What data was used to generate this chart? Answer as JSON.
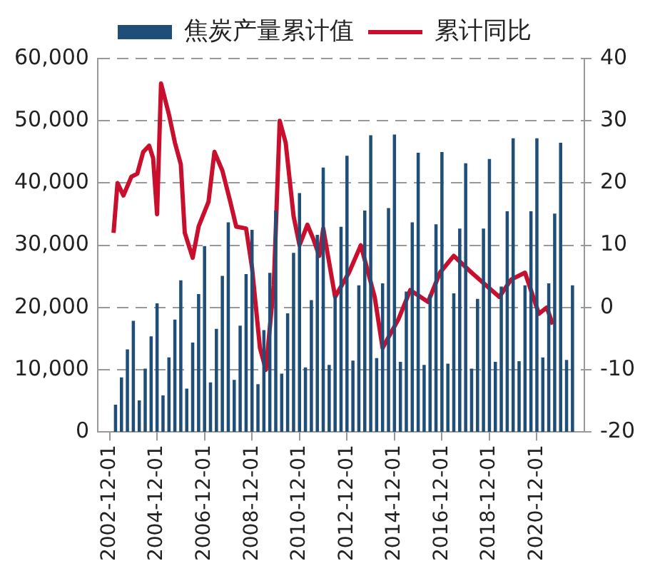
{
  "chart_data": {
    "type": "bar",
    "legend": "top",
    "grid": "y",
    "xlim": [
      "2002-06",
      "2022-12"
    ],
    "xticks": [
      {
        "value": "2002-12-01",
        "label": "2002-12-01"
      },
      {
        "value": "2004-12-01",
        "label": "2004-12-01"
      },
      {
        "value": "2006-12-01",
        "label": "2006-12-01"
      },
      {
        "value": "2008-12-01",
        "label": "2008-12-01"
      },
      {
        "value": "2010-12-01",
        "label": "2010-12-01"
      },
      {
        "value": "2012-12-01",
        "label": "2012-12-01"
      },
      {
        "value": "2014-12-01",
        "label": "2014-12-01"
      },
      {
        "value": "2016-12-01",
        "label": "2016-12-01"
      },
      {
        "value": "2018-12-01",
        "label": "2018-12-01"
      },
      {
        "value": "2020-12-01",
        "label": "2020-12-01"
      }
    ],
    "ylim": [
      0,
      60000
    ],
    "yticks": [
      0,
      {
        "value": 10000,
        "label": "10,000"
      },
      {
        "value": 20000,
        "label": "20,000"
      },
      {
        "value": 30000,
        "label": "30,000"
      },
      {
        "value": 40000,
        "label": "40,000"
      },
      {
        "value": 50000,
        "label": "50,000"
      },
      {
        "value": 60000,
        "label": "60,000"
      }
    ],
    "y2lim": [
      -20,
      40
    ],
    "y2ticks": [
      -20,
      -10,
      0,
      10,
      20,
      30,
      40
    ],
    "x": [
      "2003-03",
      "2003-06",
      "2003-09",
      "2003-12",
      "2004-03",
      "2004-06",
      "2004-09",
      "2004-12",
      "2005-03",
      "2005-06",
      "2005-09",
      "2005-12",
      "2006-03",
      "2006-06",
      "2006-09",
      "2006-12",
      "2007-03",
      "2007-06",
      "2007-09",
      "2007-12",
      "2008-03",
      "2008-06",
      "2008-09",
      "2008-12",
      "2009-03",
      "2009-06",
      "2009-09",
      "2009-12",
      "2010-03",
      "2010-06",
      "2010-09",
      "2010-12",
      "2011-03",
      "2011-06",
      "2011-09",
      "2011-12",
      "2012-03",
      "2012-06",
      "2012-09",
      "2012-12",
      "2013-03",
      "2013-06",
      "2013-09",
      "2013-12",
      "2014-03",
      "2014-06",
      "2014-09",
      "2014-12",
      "2015-03",
      "2015-06",
      "2015-09",
      "2015-12",
      "2016-03",
      "2016-06",
      "2016-09",
      "2016-12",
      "2017-03",
      "2017-06",
      "2017-09",
      "2017-12",
      "2018-03",
      "2018-06",
      "2018-09",
      "2018-12",
      "2019-03",
      "2019-06",
      "2019-09",
      "2019-12",
      "2020-03",
      "2020-06",
      "2020-09",
      "2020-12",
      "2021-03",
      "2021-06",
      "2021-09",
      "2021-12",
      "2022-03",
      "2022-06"
    ],
    "series": [
      {
        "name": "焦炭产量累计值",
        "color": "#1f4e79",
        "values": [
          4300,
          8700,
          13200,
          17800,
          5000,
          10100,
          15300,
          20600,
          5800,
          11900,
          18000,
          24300,
          6900,
          14300,
          22100,
          29800,
          7900,
          16500,
          25000,
          33600,
          8300,
          17000,
          25300,
          32400,
          7600,
          16300,
          25500,
          35500,
          9300,
          19000,
          28700,
          38300,
          10300,
          21100,
          31600,
          42400,
          10700,
          21800,
          32900,
          44300,
          11400,
          23500,
          35500,
          47600,
          11800,
          23800,
          35900,
          47700,
          11200,
          22500,
          33600,
          44800,
          10700,
          22000,
          33300,
          44900,
          10900,
          22200,
          32600,
          43100,
          10100,
          21300,
          32600,
          43800,
          11200,
          23300,
          35400,
          47100,
          11300,
          23500,
          35400,
          47100,
          11900,
          23800,
          35000,
          46400,
          11500,
          23500
        ]
      },
      {
        "name": "累计同比",
        "type": "line",
        "axis": "y2",
        "color": "#c8102e",
        "marker": "none",
        "x": [
          "2003-02",
          "2003-04",
          "2003-07",
          "2003-11",
          "2004-02",
          "2004-05",
          "2004-08",
          "2004-10",
          "2004-12",
          "2005-02",
          "2005-06",
          "2005-09",
          "2005-12",
          "2006-02",
          "2006-06",
          "2006-09",
          "2007-02",
          "2007-05",
          "2007-09",
          "2008-01",
          "2008-04",
          "2008-09",
          "2008-12",
          "2009-04",
          "2009-07",
          "2009-11",
          "2010-02",
          "2010-05",
          "2010-09",
          "2010-12",
          "2011-04",
          "2011-07",
          "2011-10",
          "2011-12",
          "2012-06",
          "2013-01",
          "2013-07",
          "2014-02",
          "2014-06",
          "2015-02",
          "2015-08",
          "2016-05",
          "2016-11",
          "2017-06",
          "2018-03",
          "2019-05",
          "2019-11",
          "2020-06",
          "2021-01",
          "2021-05",
          "2021-08"
        ],
        "values": [
          12,
          20,
          18,
          21,
          21.5,
          25,
          26,
          24,
          15,
          36,
          31,
          26.5,
          23,
          12,
          8,
          13,
          17,
          25,
          22,
          17,
          13,
          12.7,
          6.4,
          -6.5,
          -10,
          3.6,
          30,
          26.5,
          14.7,
          10,
          13.3,
          11,
          8.3,
          12.7,
          1.7,
          5.6,
          10,
          1.7,
          -6.5,
          -1.9,
          2.8,
          0.9,
          5.6,
          8.3,
          5.6,
          1.7,
          4.5,
          5.6,
          -1,
          0,
          -2.7
        ]
      }
    ]
  }
}
